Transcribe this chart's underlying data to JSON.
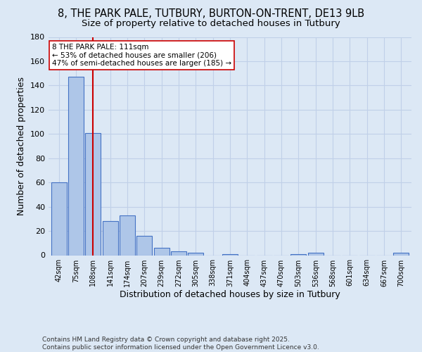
{
  "title1": "8, THE PARK PALE, TUTBURY, BURTON-ON-TRENT, DE13 9LB",
  "title2": "Size of property relative to detached houses in Tutbury",
  "xlabel": "Distribution of detached houses by size in Tutbury",
  "ylabel": "Number of detached properties",
  "categories": [
    "42sqm",
    "75sqm",
    "108sqm",
    "141sqm",
    "174sqm",
    "207sqm",
    "239sqm",
    "272sqm",
    "305sqm",
    "338sqm",
    "371sqm",
    "404sqm",
    "437sqm",
    "470sqm",
    "503sqm",
    "536sqm",
    "568sqm",
    "601sqm",
    "634sqm",
    "667sqm",
    "700sqm"
  ],
  "values": [
    60,
    147,
    101,
    28,
    33,
    16,
    6,
    3,
    2,
    0,
    1,
    0,
    0,
    0,
    1,
    2,
    0,
    0,
    0,
    0,
    2
  ],
  "bar_color": "#aec6e8",
  "bar_edge_color": "#4472c4",
  "vline_x": 2,
  "vline_color": "#cc0000",
  "annotation_text": "8 THE PARK PALE: 111sqm\n← 53% of detached houses are smaller (206)\n47% of semi-detached houses are larger (185) →",
  "annotation_box_color": "#ffffff",
  "annotation_box_edge": "#cc0000",
  "bg_color": "#dce8f5",
  "grid_color": "#c0d0e8",
  "ylim": [
    0,
    180
  ],
  "yticks": [
    0,
    20,
    40,
    60,
    80,
    100,
    120,
    140,
    160,
    180
  ],
  "footer": "Contains HM Land Registry data © Crown copyright and database right 2025.\nContains public sector information licensed under the Open Government Licence v3.0.",
  "title_fontsize": 10.5,
  "subtitle_fontsize": 9.5
}
